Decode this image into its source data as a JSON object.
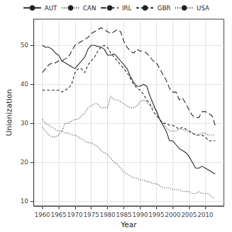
{
  "chart_data": {
    "type": "line",
    "x_label": "Year",
    "y_label": "Unionization",
    "x": [
      1960,
      1961,
      1962,
      1963,
      1964,
      1965,
      1966,
      1967,
      1968,
      1969,
      1970,
      1971,
      1972,
      1973,
      1974,
      1975,
      1976,
      1977,
      1978,
      1979,
      1980,
      1981,
      1982,
      1983,
      1984,
      1985,
      1986,
      1987,
      1988,
      1989,
      1990,
      1991,
      1992,
      1993,
      1994,
      1995,
      1996,
      1997,
      1998,
      1999,
      2000,
      2001,
      2002,
      2003,
      2004,
      2005,
      2006,
      2007,
      2008,
      2009,
      2010,
      2011,
      2012,
      2013
    ],
    "series": [
      {
        "name": "AUT",
        "color": "#222222",
        "line_style": "solid",
        "values": [
          50,
          49.5,
          49.5,
          49,
          48,
          47.5,
          46,
          45.5,
          45,
          44.5,
          44,
          45,
          46,
          47,
          49,
          50,
          50,
          49.7,
          49.5,
          49,
          47.5,
          47.5,
          47.8,
          47,
          46,
          45,
          44,
          42,
          40.5,
          39.5,
          39.5,
          40,
          39.5,
          37,
          35,
          33,
          31,
          29.5,
          28,
          25.5,
          25.5,
          24.5,
          23.5,
          23,
          22.5,
          21.5,
          20,
          18.5,
          18.5,
          19,
          18.5,
          18,
          17.5,
          17
        ]
      },
      {
        "name": "CAN",
        "color": "#222222",
        "line_style": "dotted",
        "values": [
          29,
          28,
          27,
          26.5,
          26.5,
          27,
          28,
          30,
          30,
          30.5,
          31,
          31,
          32,
          32.5,
          34,
          34.5,
          35,
          35,
          34,
          34,
          34,
          37,
          36,
          36,
          35.5,
          35,
          34.5,
          34,
          34,
          34.5,
          35.5,
          36,
          35.5,
          34.5,
          34,
          33.5,
          31,
          30,
          29,
          28,
          28,
          28,
          28.5,
          28.5,
          28,
          28,
          27.5,
          27,
          27,
          27.5,
          27.5,
          27,
          27,
          27
        ]
      },
      {
        "name": "IRL",
        "color": "#222222",
        "line_style": "longdash",
        "values": [
          43,
          44,
          45,
          45.5,
          45.5,
          46,
          46,
          46.5,
          47,
          48.5,
          50,
          50.5,
          51,
          51.5,
          52,
          53,
          53.5,
          54,
          54.5,
          54,
          53.5,
          53,
          53.5,
          54,
          53.5,
          51,
          49.5,
          48.5,
          48,
          49,
          48.5,
          48.5,
          48,
          47,
          46,
          45.5,
          44,
          42.5,
          41,
          39,
          38,
          38,
          36,
          36.5,
          35,
          33.5,
          32,
          31.5,
          31.5,
          33,
          33,
          32.5,
          32,
          29.5
        ]
      },
      {
        "name": "GBR",
        "color": "#222222",
        "line_style": "dashed",
        "values": [
          38.5,
          38.5,
          38.5,
          38.5,
          38.5,
          38.5,
          38,
          38.5,
          39,
          40,
          43,
          44,
          44,
          43,
          45,
          46,
          47,
          48.5,
          49.5,
          50,
          49.5,
          48,
          47,
          46,
          45,
          44,
          43,
          41.5,
          40,
          39,
          38.5,
          37.5,
          36,
          35,
          33,
          32,
          31,
          30,
          30,
          29.5,
          29.5,
          29,
          28.5,
          29,
          28.5,
          28,
          27.5,
          27,
          27,
          27,
          26.5,
          25.5,
          25.5,
          25.5
        ]
      },
      {
        "name": "USA",
        "color": "#222222",
        "line_style": "dotted",
        "values": [
          31,
          30,
          29.5,
          29,
          28.5,
          28,
          28,
          27.5,
          27.5,
          27,
          27,
          26.5,
          26,
          25.5,
          25,
          25,
          24.5,
          24,
          23,
          22.5,
          22,
          21,
          20,
          19.5,
          18.5,
          17.5,
          17,
          16.5,
          16,
          16,
          15.5,
          15.5,
          15,
          15,
          14.5,
          14.5,
          14,
          13.5,
          13.5,
          13.5,
          13,
          13,
          13,
          12.5,
          12.5,
          12.5,
          12,
          12,
          12.5,
          12,
          12,
          12,
          11,
          11
        ]
      }
    ],
    "xlim": [
      1957.35,
      2015.65
    ],
    "xticks": [
      1960,
      1965,
      1970,
      1975,
      1980,
      1985,
      1990,
      1995,
      2000,
      2005,
      2010
    ],
    "ylim": [
      8.8,
      56.7
    ],
    "yticks": [
      10,
      20,
      30,
      40,
      50
    ],
    "grid": true,
    "legend": "top"
  }
}
